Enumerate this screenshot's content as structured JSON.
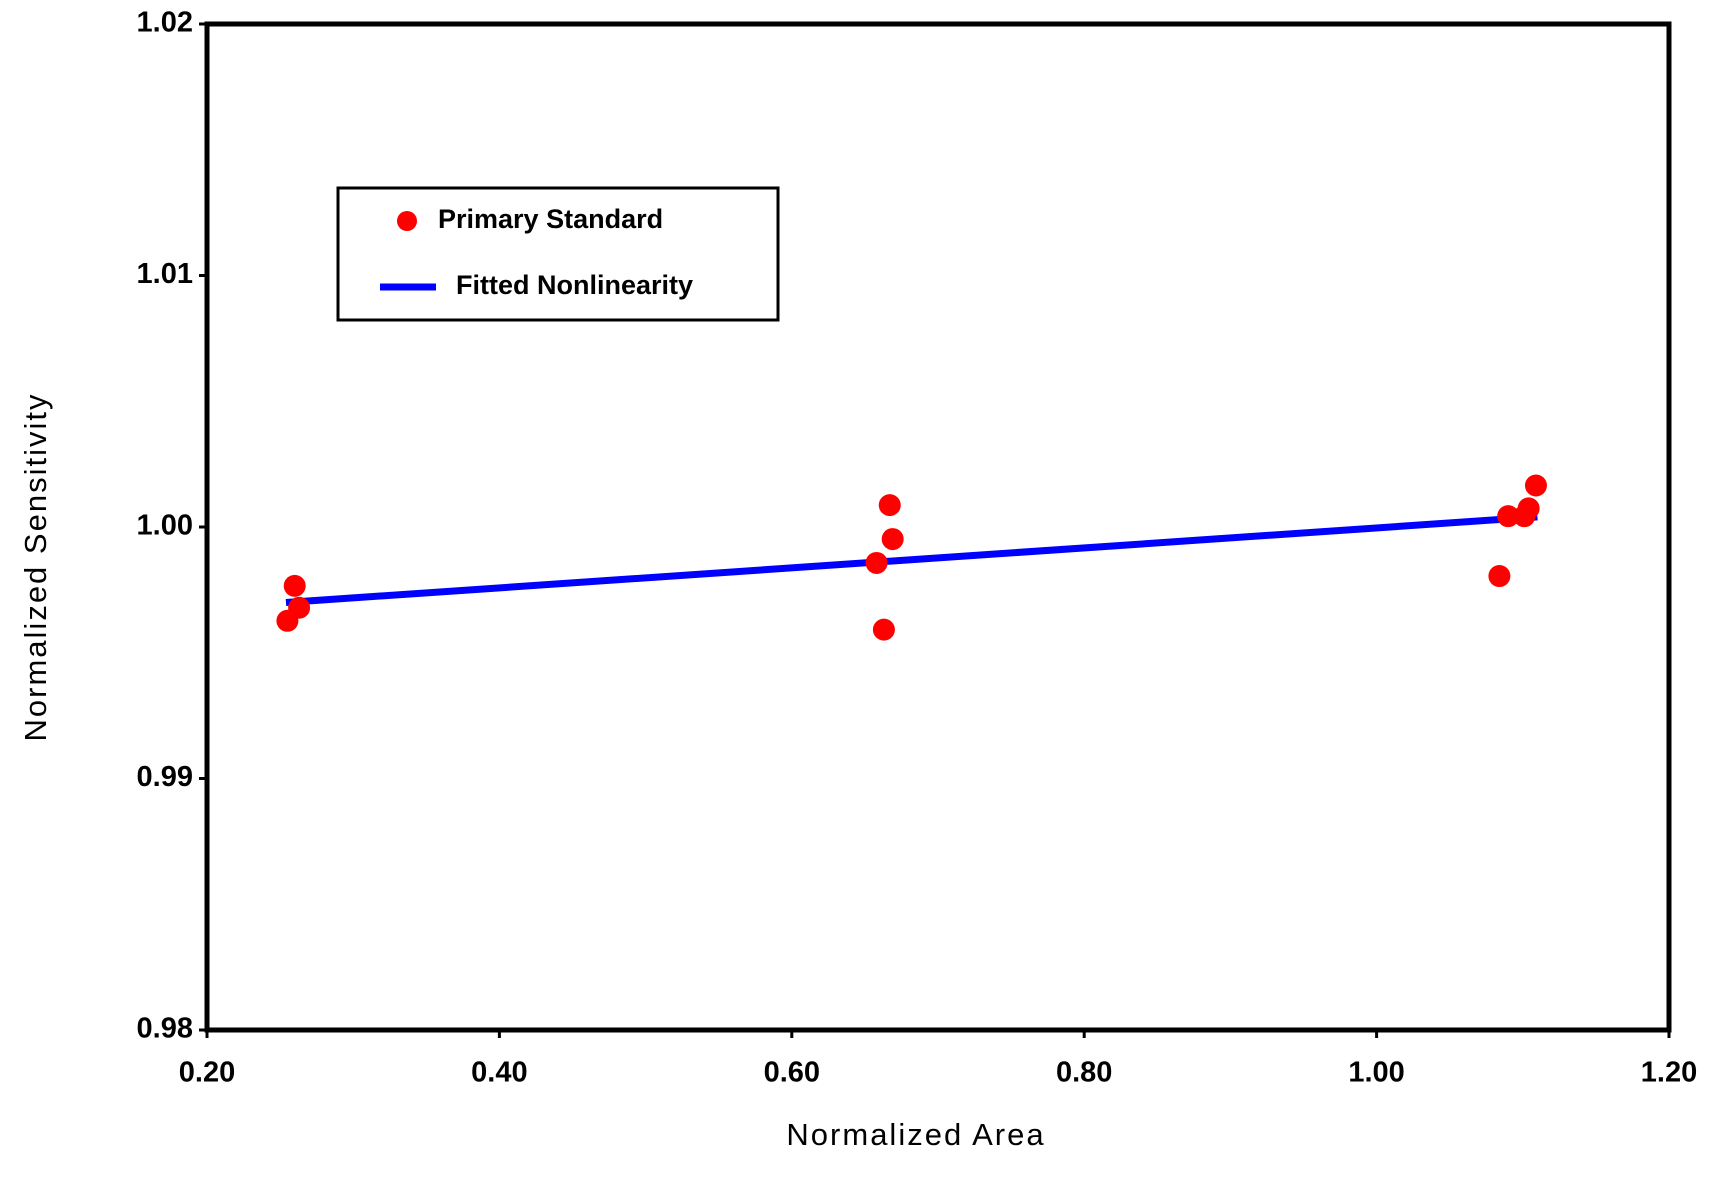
{
  "chart_data": {
    "type": "scatter",
    "x_label": "Normalized Area",
    "y_label": "Normalized Sensitivity",
    "xlim": [
      0.2,
      1.2
    ],
    "ylim": [
      0.98,
      1.02
    ],
    "xticks": [
      {
        "value": 0.2,
        "label": "0.20"
      },
      {
        "value": 0.4,
        "label": "0.40"
      },
      {
        "value": 0.6,
        "label": "0.60"
      },
      {
        "value": 0.8,
        "label": "0.80"
      },
      {
        "value": 1.0,
        "label": "1.00"
      },
      {
        "value": 1.2,
        "label": "1.20"
      }
    ],
    "yticks": [
      0.98,
      0.99,
      {
        "value": 1.0,
        "label": "1.00"
      },
      1.01,
      1.02
    ],
    "grid": false,
    "series": [
      {
        "name": "Primary Standard",
        "type": "scatter",
        "color": "#ff0000",
        "x": [
          0.255,
          0.26,
          0.263,
          0.658,
          0.663,
          0.667,
          0.669,
          1.084,
          1.09,
          1.101,
          1.104,
          1.109
        ],
        "y": [
          0.99627,
          0.99766,
          0.99679,
          0.99857,
          0.99592,
          1.00087,
          0.99952,
          0.99805,
          1.00043,
          1.00043,
          1.00074,
          1.00165
        ]
      },
      {
        "name": "Fitted Nonlinearity",
        "type": "line",
        "color": "#0000ff",
        "x": [
          0.254,
          1.11
        ],
        "y": [
          0.997,
          1.0004
        ]
      }
    ]
  }
}
